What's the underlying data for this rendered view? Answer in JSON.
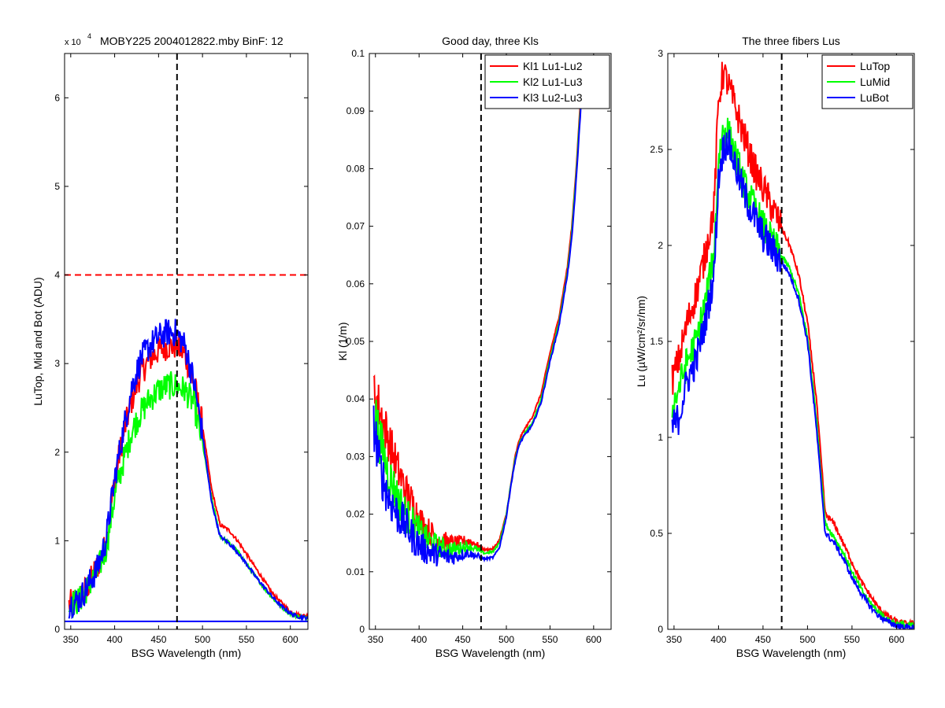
{
  "figure": {
    "background": "#ffffff"
  },
  "chart_data": [
    {
      "type": "line",
      "title": "MOBY225  2004012822.mby BinF: 12",
      "exponent_label": "x 10",
      "exponent_sup": "4",
      "xlabel": "BSG Wavelength (nm)",
      "ylabel": "LuTop, Mid and Bot (ADU)",
      "xlim": [
        343,
        620
      ],
      "ylim": [
        0,
        6.5
      ],
      "xticks": [
        350,
        400,
        450,
        500,
        550,
        600
      ],
      "yticks": [
        0,
        1,
        2,
        3,
        4,
        5,
        6
      ],
      "xtick_labels": [
        "350",
        "400",
        "450",
        "500",
        "550",
        "600"
      ],
      "ytick_labels": [
        "0",
        "1",
        "2",
        "3",
        "4",
        "5",
        "6"
      ],
      "grid": false,
      "legend": "none",
      "vline": 471,
      "hlines": [
        {
          "value": 4.0,
          "color": "#ff0000",
          "dash": true
        },
        {
          "value": 0.09,
          "color": "#0000ff",
          "dash": false
        }
      ],
      "series": [
        {
          "color": "#ff0000",
          "x": [
            348,
            360,
            370,
            380,
            390,
            395,
            400,
            410,
            420,
            430,
            440,
            450,
            460,
            470,
            480,
            490,
            500,
            510,
            520,
            530,
            540,
            550,
            560,
            570,
            580,
            590,
            600,
            610,
            620
          ],
          "y": [
            0.28,
            0.35,
            0.5,
            0.7,
            0.95,
            1.3,
            1.7,
            2.2,
            2.6,
            2.9,
            3.05,
            3.15,
            3.2,
            3.2,
            3.1,
            2.8,
            2.3,
            1.6,
            1.18,
            1.12,
            1.0,
            0.85,
            0.7,
            0.55,
            0.4,
            0.3,
            0.2,
            0.16,
            0.15
          ]
        },
        {
          "color": "#00ff00",
          "x": [
            348,
            360,
            370,
            380,
            390,
            395,
            400,
            410,
            420,
            430,
            440,
            450,
            460,
            470,
            480,
            490,
            500,
            510,
            520,
            530,
            540,
            550,
            560,
            570,
            580,
            590,
            600,
            610,
            620
          ],
          "y": [
            0.27,
            0.33,
            0.48,
            0.65,
            0.9,
            1.2,
            1.5,
            1.9,
            2.25,
            2.45,
            2.6,
            2.7,
            2.75,
            2.75,
            2.7,
            2.55,
            2.1,
            1.5,
            1.05,
            0.98,
            0.88,
            0.74,
            0.6,
            0.47,
            0.35,
            0.25,
            0.18,
            0.14,
            0.13
          ]
        },
        {
          "color": "#0000ff",
          "x": [
            348,
            360,
            370,
            380,
            390,
            395,
            400,
            410,
            420,
            430,
            440,
            450,
            460,
            470,
            480,
            490,
            500,
            510,
            520,
            530,
            540,
            550,
            560,
            570,
            580,
            590,
            600,
            610,
            620
          ],
          "y": [
            0.28,
            0.34,
            0.5,
            0.68,
            1.0,
            1.35,
            1.7,
            2.25,
            2.75,
            3.05,
            3.2,
            3.3,
            3.35,
            3.35,
            3.2,
            2.8,
            2.2,
            1.45,
            1.05,
            0.97,
            0.87,
            0.74,
            0.6,
            0.48,
            0.36,
            0.26,
            0.18,
            0.14,
            0.13
          ]
        }
      ]
    },
    {
      "type": "line",
      "title": "Good day, three Kls",
      "xlabel": "BSG Wavelength (nm)",
      "ylabel": "Kl (1/m)",
      "xlim": [
        343,
        620
      ],
      "ylim": [
        0,
        0.1
      ],
      "xticks": [
        350,
        400,
        450,
        500,
        550,
        600
      ],
      "yticks": [
        0,
        0.01,
        0.02,
        0.03,
        0.04,
        0.05,
        0.06,
        0.07,
        0.08,
        0.09,
        0.1
      ],
      "xtick_labels": [
        "350",
        "400",
        "450",
        "500",
        "550",
        "600"
      ],
      "ytick_labels": [
        "0",
        "0.01",
        "0.02",
        "0.03",
        "0.04",
        "0.05",
        "0.06",
        "0.07",
        "0.08",
        "0.09",
        "0.1"
      ],
      "grid": false,
      "legend": "top-right",
      "vline": 471,
      "hlines": [],
      "series": [
        {
          "name": "Kl1 Lu1-Lu2",
          "color": "#ff0000",
          "x": [
            348,
            355,
            365,
            375,
            385,
            395,
            405,
            415,
            425,
            435,
            445,
            455,
            465,
            475,
            485,
            492,
            500,
            505,
            510,
            515,
            520,
            530,
            540,
            550,
            560,
            570,
            575,
            580,
            585,
            590
          ],
          "y": [
            0.042,
            0.038,
            0.033,
            0.028,
            0.024,
            0.021,
            0.018,
            0.0165,
            0.0155,
            0.015,
            0.015,
            0.0155,
            0.0148,
            0.0138,
            0.014,
            0.0155,
            0.02,
            0.025,
            0.03,
            0.033,
            0.0345,
            0.037,
            0.041,
            0.048,
            0.054,
            0.063,
            0.07,
            0.08,
            0.092,
            0.1
          ]
        },
        {
          "name": "Kl2 Lu1-Lu3",
          "color": "#00ff00",
          "x": [
            348,
            355,
            365,
            375,
            385,
            395,
            405,
            415,
            425,
            435,
            445,
            455,
            465,
            475,
            485,
            492,
            500,
            505,
            510,
            515,
            520,
            530,
            540,
            550,
            560,
            570,
            575,
            580,
            585,
            590
          ],
          "y": [
            0.039,
            0.033,
            0.027,
            0.023,
            0.02,
            0.018,
            0.016,
            0.015,
            0.0142,
            0.0138,
            0.014,
            0.0145,
            0.014,
            0.0132,
            0.0135,
            0.015,
            0.0198,
            0.025,
            0.0295,
            0.0325,
            0.0338,
            0.036,
            0.04,
            0.047,
            0.053,
            0.062,
            0.069,
            0.079,
            0.091,
            0.1
          ]
        },
        {
          "name": "Kl3 Lu2-Lu3",
          "color": "#0000ff",
          "x": [
            348,
            355,
            365,
            375,
            385,
            395,
            405,
            415,
            425,
            435,
            445,
            455,
            465,
            475,
            485,
            492,
            500,
            505,
            510,
            515,
            520,
            530,
            540,
            550,
            560,
            570,
            575,
            580,
            585,
            590
          ],
          "y": [
            0.036,
            0.028,
            0.023,
            0.02,
            0.018,
            0.0155,
            0.014,
            0.0132,
            0.0128,
            0.0125,
            0.0128,
            0.0133,
            0.0128,
            0.0122,
            0.0125,
            0.0142,
            0.0195,
            0.0248,
            0.0292,
            0.0322,
            0.0335,
            0.0355,
            0.0395,
            0.0465,
            0.0525,
            0.0615,
            0.068,
            0.078,
            0.09,
            0.1
          ]
        }
      ]
    },
    {
      "type": "line",
      "title": "The three fibers Lus",
      "xlabel": "BSG Wavelength (nm)",
      "ylabel": "Lu (µW/cm²/sr/nm)",
      "xlim": [
        343,
        620
      ],
      "ylim": [
        0,
        3
      ],
      "xticks": [
        350,
        400,
        450,
        500,
        550,
        600
      ],
      "yticks": [
        0,
        0.5,
        1,
        1.5,
        2,
        2.5,
        3
      ],
      "xtick_labels": [
        "350",
        "400",
        "450",
        "500",
        "550",
        "600"
      ],
      "ytick_labels": [
        "0",
        "0.5",
        "1",
        "1.5",
        "2",
        "2.5",
        "3"
      ],
      "grid": false,
      "legend": "top-right",
      "vline": 471,
      "hlines": [],
      "series": [
        {
          "name": "LuTop",
          "color": "#ff0000",
          "x": [
            348,
            355,
            365,
            375,
            385,
            395,
            400,
            405,
            410,
            420,
            430,
            440,
            450,
            460,
            470,
            480,
            490,
            500,
            510,
            520,
            530,
            540,
            550,
            560,
            570,
            580,
            590,
            600,
            610,
            620
          ],
          "y": [
            1.3,
            1.4,
            1.6,
            1.75,
            1.95,
            2.2,
            2.75,
            2.9,
            2.85,
            2.7,
            2.55,
            2.4,
            2.3,
            2.2,
            2.1,
            2.0,
            1.85,
            1.6,
            1.2,
            0.6,
            0.55,
            0.45,
            0.35,
            0.25,
            0.18,
            0.11,
            0.07,
            0.04,
            0.03,
            0.03
          ]
        },
        {
          "name": "LuMid",
          "color": "#00ff00",
          "x": [
            348,
            355,
            365,
            375,
            385,
            395,
            400,
            405,
            410,
            420,
            430,
            440,
            450,
            460,
            470,
            480,
            490,
            500,
            510,
            520,
            530,
            540,
            550,
            560,
            570,
            580,
            590,
            600,
            610,
            620
          ],
          "y": [
            1.15,
            1.25,
            1.4,
            1.5,
            1.7,
            1.95,
            2.45,
            2.6,
            2.6,
            2.45,
            2.3,
            2.2,
            2.1,
            2.02,
            1.95,
            1.88,
            1.75,
            1.52,
            1.1,
            0.55,
            0.48,
            0.4,
            0.3,
            0.21,
            0.14,
            0.09,
            0.05,
            0.03,
            0.02,
            0.02
          ]
        },
        {
          "name": "LuBot",
          "color": "#0000ff",
          "x": [
            348,
            355,
            365,
            375,
            385,
            395,
            400,
            405,
            410,
            420,
            430,
            440,
            450,
            460,
            470,
            480,
            490,
            500,
            510,
            520,
            530,
            540,
            550,
            560,
            570,
            580,
            590,
            600,
            610,
            620
          ],
          "y": [
            1.05,
            1.1,
            1.3,
            1.4,
            1.6,
            1.85,
            2.35,
            2.5,
            2.55,
            2.4,
            2.25,
            2.15,
            2.05,
            1.98,
            1.92,
            1.85,
            1.72,
            1.5,
            1.05,
            0.5,
            0.45,
            0.37,
            0.27,
            0.19,
            0.12,
            0.07,
            0.04,
            0.02,
            0.01,
            0.01
          ]
        }
      ]
    }
  ]
}
